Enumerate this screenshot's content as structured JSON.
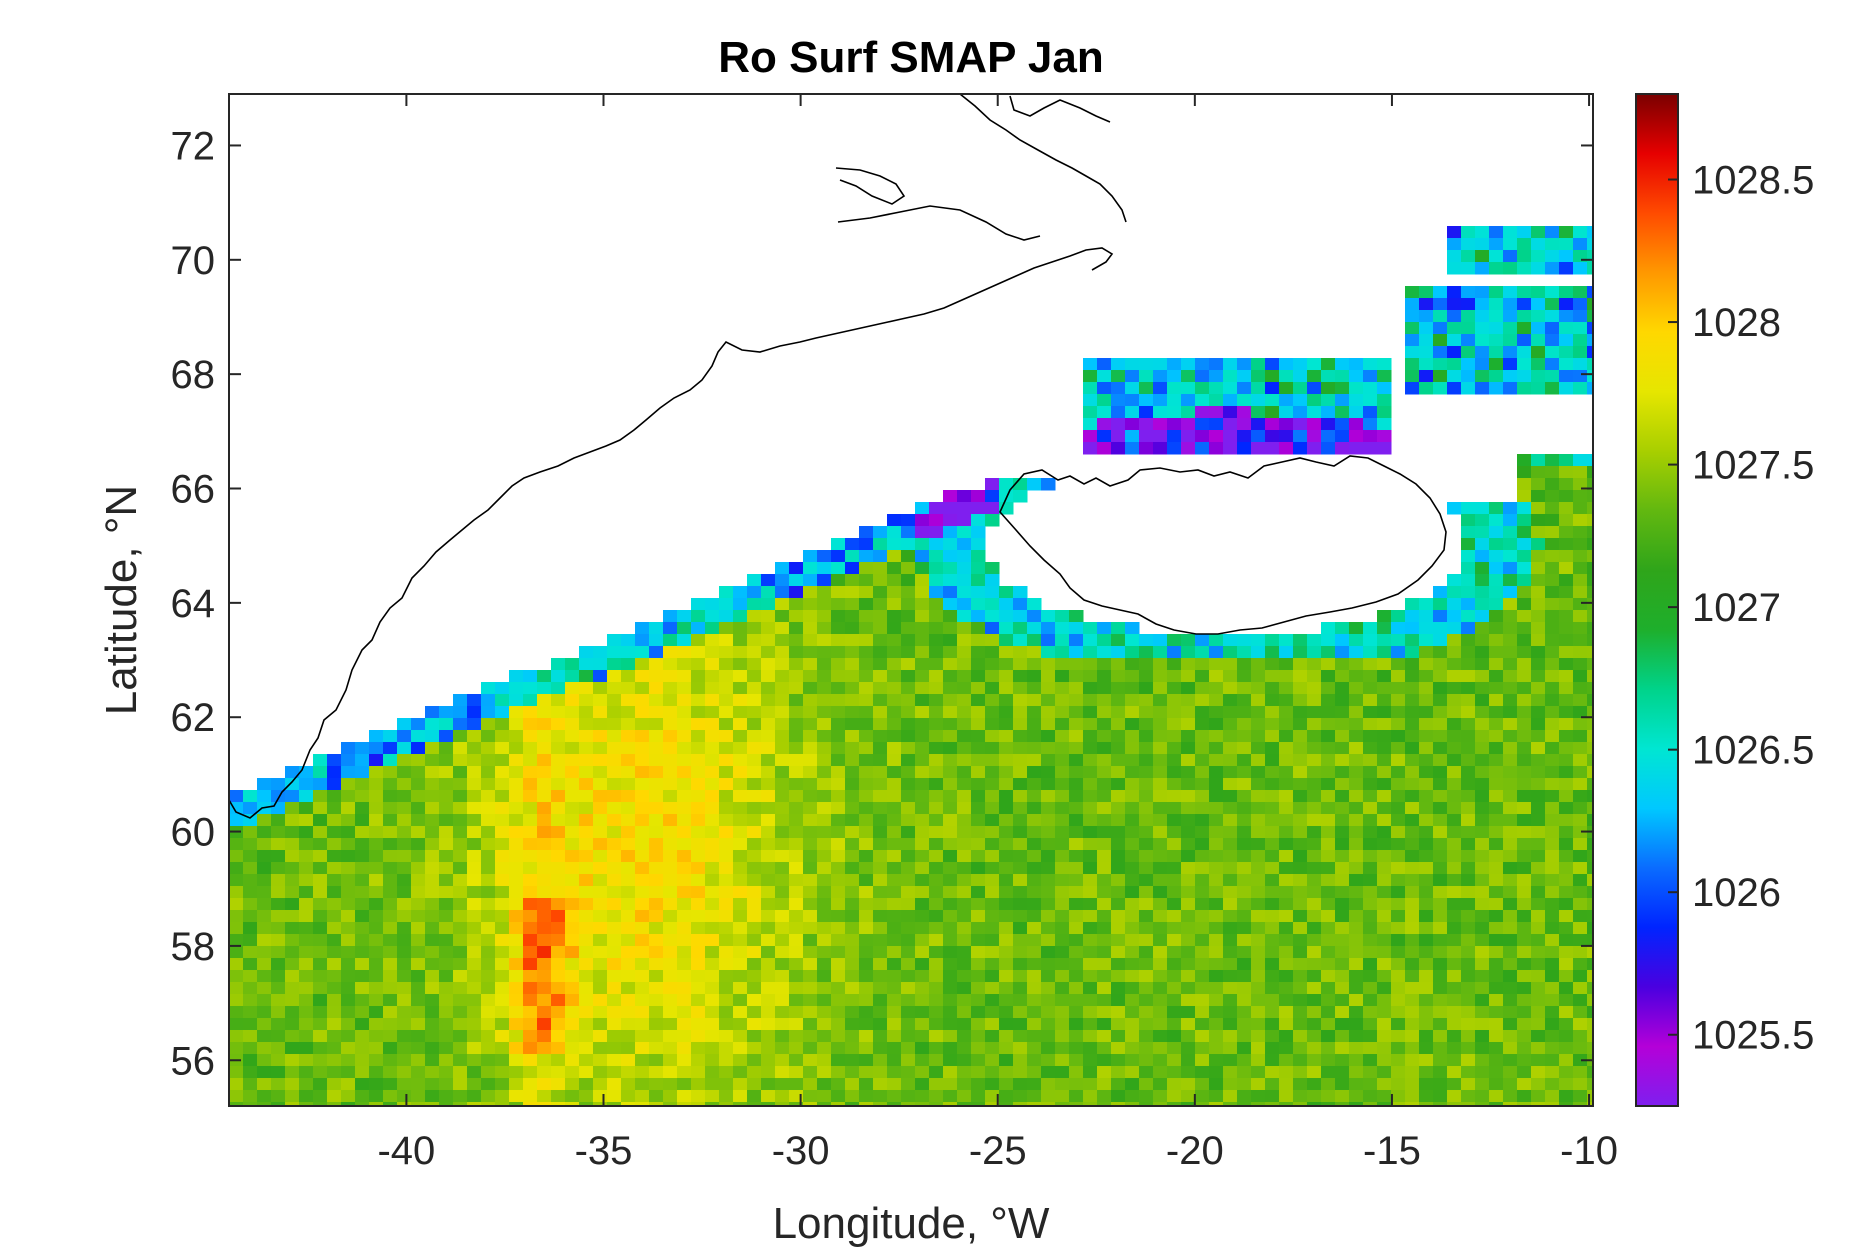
{
  "chart_data": {
    "type": "heatmap",
    "title": "Ro Surf SMAP Jan",
    "xlabel": "Longitude, °W",
    "ylabel": "Latitude, °N",
    "xlim": [
      -44.5,
      -9.9
    ],
    "ylim": [
      55.2,
      72.9
    ],
    "xticks": [
      -40,
      -35,
      -30,
      -25,
      -20,
      -15,
      -10
    ],
    "xtick_labels": [
      "-40",
      "-35",
      "-30",
      "-25",
      "-20",
      "-15",
      "-10"
    ],
    "yticks": [
      56,
      58,
      60,
      62,
      64,
      66,
      68,
      70,
      72
    ],
    "ytick_labels": [
      "56",
      "58",
      "60",
      "62",
      "64",
      "66",
      "68",
      "70",
      "72"
    ],
    "colorbar": {
      "colormap": "jet-like (violet-blue-cyan-green-yellow-red-darkred)",
      "range": [
        1025.25,
        1028.8
      ],
      "ticks": [
        1025.5,
        1026,
        1026.5,
        1027,
        1027.5,
        1028,
        1028.5
      ],
      "tick_labels": [
        "1025.5",
        "1026",
        "1026.5",
        "1027",
        "1027.5",
        "1028",
        "1028.5"
      ],
      "stops": [
        "#7f1fef",
        "#b400d8",
        "#4a00e0",
        "#0024ff",
        "#0a6cff",
        "#00c8ff",
        "#00e6d2",
        "#00d38a",
        "#1eaf2c",
        "#2fa51a",
        "#62b810",
        "#a8cf00",
        "#e6e600",
        "#ffd800",
        "#ff9800",
        "#ff4b00",
        "#e60000",
        "#7a0000"
      ]
    },
    "features": {
      "coastlines": [
        "Greenland (east coast)",
        "Iceland"
      ],
      "grid": false,
      "box": true
    },
    "field_description": {
      "high_density_band": "along ~ -37 to -33 °W, 57–63 °N (orange/red)",
      "low_density_rim": "shelf edges off Greenland and around Iceland (cyan/blue/violet)",
      "interior": "green-yellow (≈1027.2–1027.8)"
    }
  }
}
